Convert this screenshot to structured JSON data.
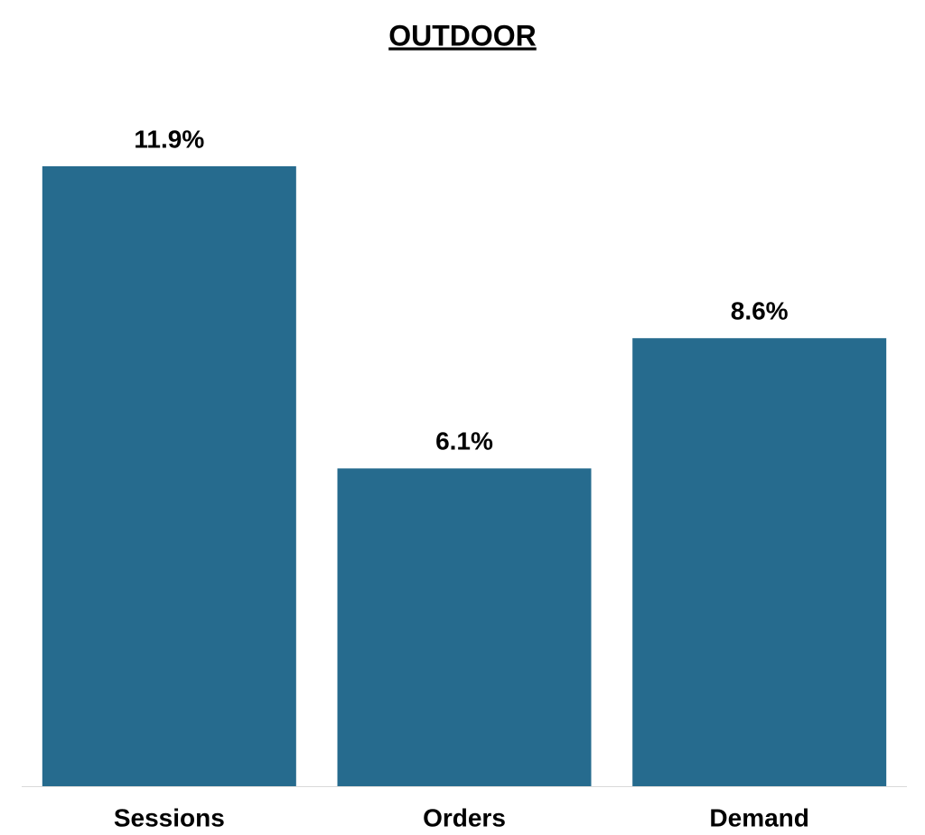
{
  "chart_data": {
    "type": "bar",
    "title": "OUTDOOR",
    "categories": [
      "Sessions",
      "Orders",
      "Demand"
    ],
    "values": [
      11.9,
      6.1,
      8.6
    ],
    "value_labels": [
      "11.9%",
      "6.1%",
      "8.6%"
    ],
    "color": "#266b8e"
  }
}
